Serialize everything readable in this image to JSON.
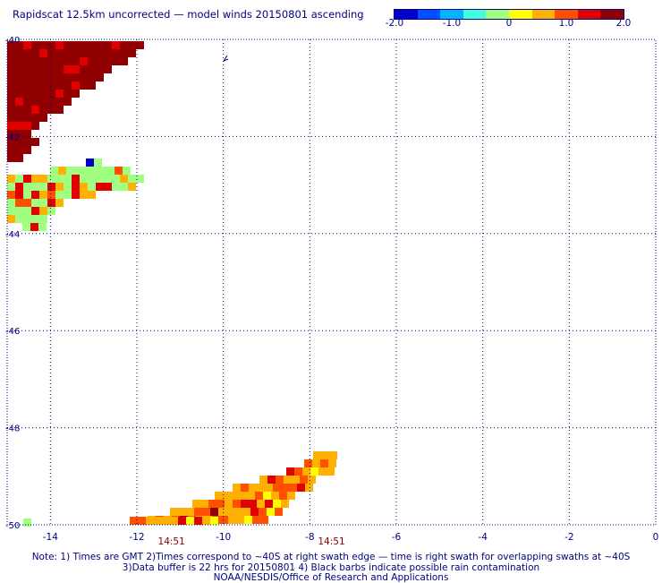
{
  "header": {
    "title": "Rapidscat 12.5km uncorrected — model winds 20150801 ascending"
  },
  "colorbar": {
    "colors": [
      "#0000c8",
      "#0050ff",
      "#00b4ff",
      "#40ffe0",
      "#a0ff80",
      "#ffff00",
      "#ffb000",
      "#ff5000",
      "#e00000",
      "#900000"
    ],
    "ticks": [
      "-2.0",
      "-1.0",
      "0",
      "1.0",
      "2.0"
    ],
    "range": [
      -2.0,
      2.0
    ]
  },
  "map": {
    "lon_ticks": [
      "-14",
      "-12",
      "-10",
      "-8",
      "-6",
      "-4",
      "-2",
      "0"
    ],
    "lat_ticks": [
      "-40",
      "-42",
      "-44",
      "-46",
      "-48",
      "-50"
    ],
    "time_labels": [
      {
        "text": "14:51",
        "lon": -11.2
      },
      {
        "text": "14:51",
        "lon": -7.5
      }
    ],
    "frame_color": "#000080",
    "grid": true
  },
  "notes": {
    "line1": "Note: 1) Times are GMT 2)Times correspond to ~40S at right swath edge — time is right swath for overlapping swaths at ~40S",
    "line2": "3)Data buffer is 22 hrs for 20150801 4) Black barbs indicate possible rain contamination",
    "line3": "NOAA/NESDIS/Office of Research and Applications"
  }
}
